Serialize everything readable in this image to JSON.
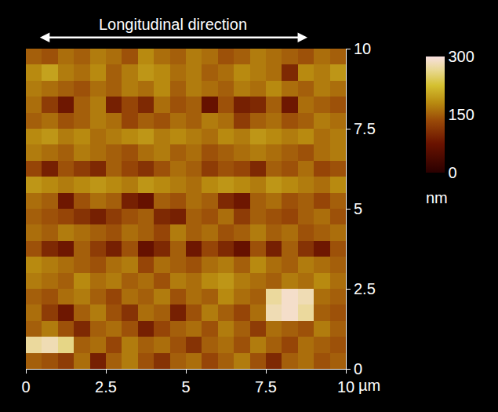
{
  "chart_data": {
    "type": "heatmap",
    "annotation": "Longitudinal direction",
    "xlabel": "µm",
    "x": [
      0.25,
      0.75,
      1.25,
      1.75,
      2.25,
      2.75,
      3.25,
      3.75,
      4.25,
      4.75,
      5.25,
      5.75,
      6.25,
      6.75,
      7.25,
      7.75,
      8.25,
      8.75,
      9.25,
      9.75
    ],
    "y": [
      0.25,
      0.75,
      1.25,
      1.75,
      2.25,
      2.75,
      3.25,
      3.75,
      4.25,
      4.75,
      5.25,
      5.75,
      6.25,
      6.75,
      7.25,
      7.75,
      8.25,
      8.75,
      9.25,
      9.75
    ],
    "z": [
      [
        150,
        140,
        120,
        160,
        90,
        150,
        170,
        140,
        110,
        150,
        160,
        130,
        150,
        170,
        140,
        100,
        150,
        160,
        140,
        150
      ],
      [
        270,
        280,
        260,
        150,
        160,
        130,
        170,
        150,
        160,
        140,
        110,
        150,
        160,
        140,
        170,
        150,
        130,
        160,
        150,
        140
      ],
      [
        150,
        170,
        140,
        100,
        150,
        160,
        140,
        90,
        130,
        150,
        160,
        140,
        170,
        150,
        120,
        160,
        150,
        140,
        170,
        150
      ],
      [
        160,
        120,
        80,
        150,
        170,
        140,
        110,
        160,
        150,
        90,
        140,
        170,
        150,
        130,
        160,
        280,
        290,
        270,
        150,
        140
      ],
      [
        150,
        140,
        160,
        170,
        150,
        130,
        160,
        150,
        170,
        140,
        160,
        150,
        180,
        160,
        150,
        270,
        290,
        280,
        160,
        150
      ],
      [
        170,
        160,
        150,
        180,
        160,
        170,
        150,
        160,
        140,
        170,
        160,
        180,
        190,
        170,
        160,
        150,
        170,
        160,
        180,
        160
      ],
      [
        180,
        170,
        160,
        150,
        140,
        160,
        170,
        130,
        160,
        150,
        140,
        160,
        170,
        150,
        180,
        160,
        150,
        170,
        160,
        150
      ],
      [
        140,
        100,
        80,
        150,
        120,
        90,
        140,
        70,
        100,
        150,
        80,
        130,
        100,
        70,
        140,
        90,
        150,
        110,
        80,
        140
      ],
      [
        160,
        150,
        170,
        160,
        150,
        140,
        160,
        150,
        130,
        170,
        150,
        160,
        140,
        150,
        170,
        150,
        160,
        140,
        150,
        160
      ],
      [
        150,
        140,
        130,
        110,
        90,
        120,
        140,
        150,
        100,
        90,
        150,
        140,
        160,
        120,
        150,
        140,
        130,
        150,
        160,
        140
      ],
      [
        160,
        150,
        80,
        140,
        160,
        150,
        90,
        70,
        150,
        140,
        160,
        150,
        100,
        80,
        150,
        160,
        140,
        150,
        130,
        150
      ],
      [
        190,
        180,
        170,
        180,
        190,
        180,
        170,
        190,
        180,
        170,
        160,
        180,
        190,
        180,
        170,
        190,
        180,
        170,
        160,
        180
      ],
      [
        130,
        90,
        140,
        120,
        100,
        150,
        130,
        110,
        140,
        160,
        150,
        120,
        140,
        130,
        100,
        150,
        140,
        160,
        130,
        140
      ],
      [
        170,
        160,
        150,
        170,
        160,
        150,
        140,
        160,
        170,
        150,
        160,
        140,
        150,
        160,
        170,
        160,
        150,
        140,
        160,
        170
      ],
      [
        180,
        190,
        170,
        180,
        160,
        170,
        180,
        190,
        170,
        180,
        170,
        160,
        180,
        170,
        190,
        180,
        170,
        180,
        160,
        170
      ],
      [
        150,
        160,
        140,
        150,
        170,
        160,
        130,
        150,
        140,
        160,
        150,
        170,
        160,
        120,
        150,
        160,
        140,
        150,
        170,
        160
      ],
      [
        160,
        120,
        80,
        150,
        170,
        90,
        130,
        100,
        160,
        140,
        150,
        70,
        140,
        90,
        100,
        150,
        80,
        160,
        150,
        140
      ],
      [
        170,
        160,
        150,
        140,
        160,
        150,
        170,
        160,
        180,
        150,
        170,
        160,
        150,
        170,
        160,
        180,
        160,
        150,
        170,
        160
      ],
      [
        180,
        200,
        170,
        160,
        180,
        150,
        170,
        190,
        180,
        160,
        170,
        150,
        160,
        180,
        170,
        160,
        100,
        180,
        170,
        190
      ],
      [
        150,
        140,
        160,
        150,
        170,
        160,
        140,
        180,
        160,
        150,
        170,
        160,
        140,
        150,
        170,
        160,
        150,
        140,
        160,
        150
      ]
    ],
    "xlim": [
      0,
      10
    ],
    "ylim": [
      0,
      10
    ],
    "xticks": [
      0,
      2.5,
      5,
      7.5,
      10
    ],
    "yticks": [
      0,
      2.5,
      5,
      7.5,
      10
    ],
    "colorbar": {
      "range": [
        0,
        300
      ],
      "ticks": [
        0,
        150,
        300
      ],
      "title": "nm"
    }
  }
}
